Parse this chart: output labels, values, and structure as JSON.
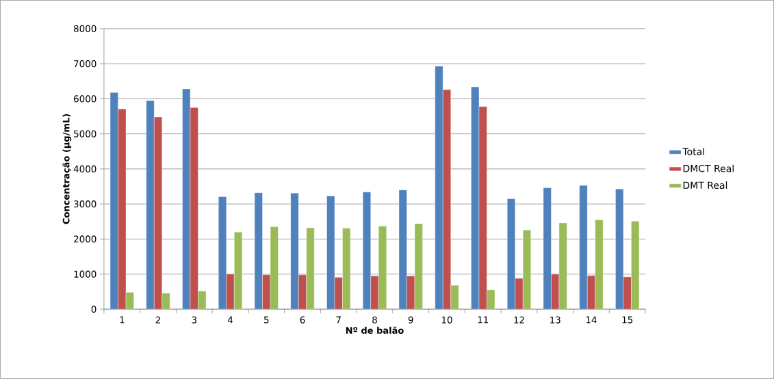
{
  "chart_data": {
    "type": "bar",
    "xlabel": "Nº de balão",
    "ylabel": "Concentração (µg/mL)",
    "categories": [
      "1",
      "2",
      "3",
      "4",
      "5",
      "6",
      "7",
      "8",
      "9",
      "10",
      "11",
      "12",
      "13",
      "14",
      "15"
    ],
    "series": [
      {
        "name": "Total",
        "color": "#4f81bd",
        "values": [
          6180,
          5950,
          6280,
          3210,
          3320,
          3310,
          3230,
          3340,
          3400,
          6930,
          6340,
          3150,
          3460,
          3530,
          3430
        ]
      },
      {
        "name": "DMCT Real",
        "color": "#c0504d",
        "values": [
          5710,
          5480,
          5750,
          1000,
          980,
          980,
          910,
          950,
          950,
          6260,
          5780,
          880,
          1000,
          960,
          920
        ]
      },
      {
        "name": "DMT Real",
        "color": "#9bbb59",
        "values": [
          480,
          460,
          520,
          2200,
          2350,
          2320,
          2310,
          2370,
          2440,
          680,
          550,
          2260,
          2460,
          2550,
          2510
        ]
      }
    ],
    "ylim": [
      0,
      8000
    ],
    "yticks": [
      0,
      1000,
      2000,
      3000,
      4000,
      5000,
      6000,
      7000,
      8000
    ],
    "grid": "y",
    "legend": "right"
  }
}
